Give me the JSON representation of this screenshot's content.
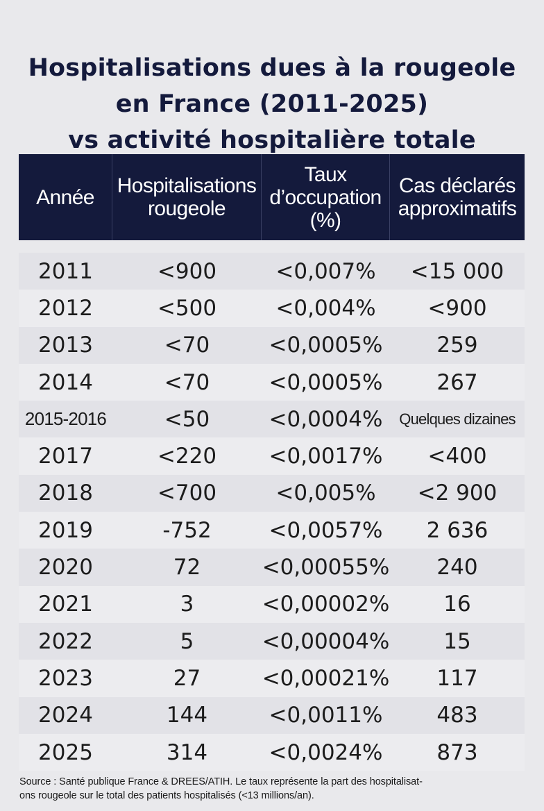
{
  "title": {
    "line1": "Hospitalisations dues à la rougeole",
    "line2": "en France (2011-2025)",
    "line3": "vs activité hospitalière totale"
  },
  "table": {
    "headers": {
      "year": "Année",
      "hosp": "Hospitalisations\nrougeole",
      "rate": "Taux\nd’occupation\n(%)",
      "cases": "Cas déclarés\napproximatifs"
    },
    "rows": [
      {
        "year": "2011",
        "hosp": "<900",
        "rate": "<0,007%",
        "cases": "<15 000"
      },
      {
        "year": "2012",
        "hosp": "<500",
        "rate": "<0,004%",
        "cases": "<900"
      },
      {
        "year": "2013",
        "hosp": "<70",
        "rate": "<0,0005%",
        "cases": "259"
      },
      {
        "year": "2014",
        "hosp": "<70",
        "rate": "<0,0005%",
        "cases": "267"
      },
      {
        "year": "2015-2016",
        "hosp": "<50",
        "rate": "<0,0004%",
        "cases": "Quelques dizaines"
      },
      {
        "year": "2017",
        "hosp": "<220",
        "rate": "<0,0017%",
        "cases": "<400"
      },
      {
        "year": "2018",
        "hosp": "<700",
        "rate": "<0,005%",
        "cases": "<2 900"
      },
      {
        "year": "2019",
        "hosp": "-752",
        "rate": "<0,0057%",
        "cases": "2 636"
      },
      {
        "year": "2020",
        "hosp": "72",
        "rate": "<0,00055%",
        "cases": "240"
      },
      {
        "year": "2021",
        "hosp": "3",
        "rate": "<0,00002%",
        "cases": "16"
      },
      {
        "year": "2022",
        "hosp": "5",
        "rate": "<0,00004%",
        "cases": "15"
      },
      {
        "year": "2023",
        "hosp": "27",
        "rate": "<0,00021%",
        "cases": "117"
      },
      {
        "year": "2024",
        "hosp": "144",
        "rate": "<0,0011%",
        "cases": "483"
      },
      {
        "year": "2025",
        "hosp": "314",
        "rate": "<0,0024%",
        "cases": "873"
      }
    ]
  },
  "source": {
    "line1": "Source : Santé publique France & DREES/ATIH. Le taux représente la part des hospitalisat-",
    "line2": "ons rougeole sur le total des patients hospitalisés  (<13 millions/an)."
  },
  "colors": {
    "header_bg": "#141a3c",
    "title_text": "#141a3c",
    "page_bg": "#e9e9ec"
  }
}
